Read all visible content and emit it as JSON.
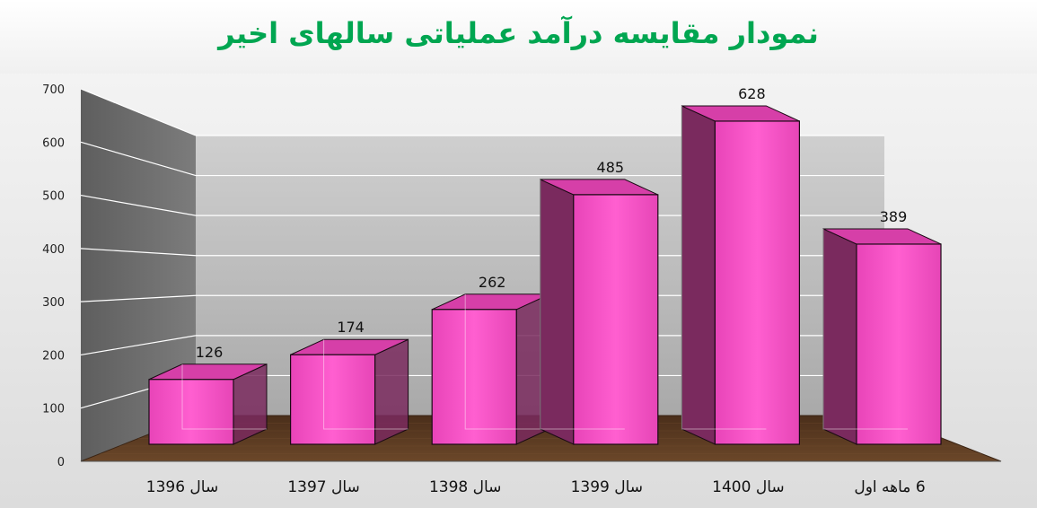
{
  "chart_data": {
    "type": "bar",
    "title": "نمودار مقایسه درآمد عملیاتی سالهای اخیر",
    "categories": [
      "سال 1396",
      "سال 1397",
      "سال 1398",
      "سال 1399",
      "سال 1400",
      "6 ماهه اول"
    ],
    "values": [
      126,
      174,
      262,
      485,
      628,
      389
    ],
    "data_labels": [
      "126",
      "174",
      "262",
      "485",
      "628",
      "389"
    ],
    "ylim": [
      0,
      700
    ],
    "yticks": [
      0,
      100,
      200,
      300,
      400,
      500,
      600,
      700
    ],
    "ytick_labels": [
      "0",
      "100",
      "200",
      "300",
      "400",
      "500",
      "600",
      "700"
    ],
    "grid": true,
    "style": "3d-column",
    "colors": {
      "bar_front": "#f04fc0",
      "bar_side": "#7a2a5e",
      "bar_top": "#d63fa8",
      "title": "#00a651",
      "floor": "#5a3a22",
      "back_wall": "#bdbdbd",
      "side_wall": "#6e6e6e"
    }
  }
}
